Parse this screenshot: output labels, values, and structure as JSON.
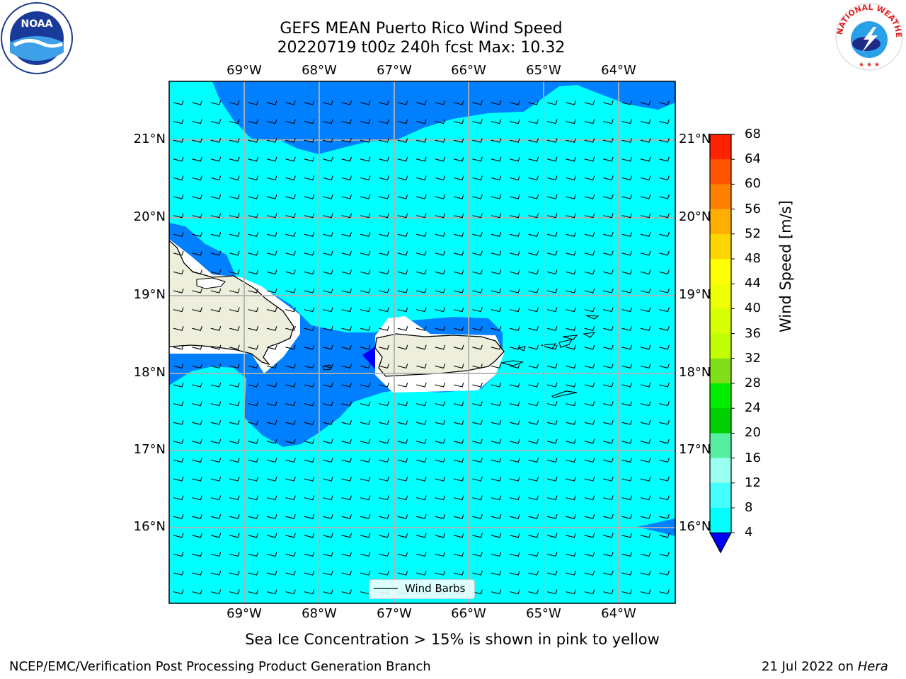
{
  "header": {
    "title_line1": "GEFS MEAN Puerto Rico Wind Speed",
    "title_line2": "20220719 t00z 240h fcst   Max: 10.32"
  },
  "logos": {
    "left": {
      "name": "noaa-logo",
      "text": "NOAA",
      "ring_text": "NATIONAL OCEANIC AND ATMOSPHERIC ADMINISTRATION · U.S. DEPARTMENT OF COMMERCE"
    },
    "right": {
      "name": "nws-logo",
      "ring_text": "NATIONAL WEATHER SERVICE"
    }
  },
  "map": {
    "lon_ticks": [
      "69°W",
      "68°W",
      "67°W",
      "66°W",
      "65°W",
      "64°W"
    ],
    "lat_ticks": [
      "21°N",
      "20°N",
      "19°N",
      "18°N",
      "17°N",
      "16°N"
    ],
    "legend_label": "Wind Barbs",
    "caption": "Sea Ice Concentration > 15% is shown in pink to yellow"
  },
  "colorbar": {
    "label": "Wind Speed [m/s]",
    "ticks": [
      "68",
      "64",
      "60",
      "56",
      "52",
      "48",
      "44",
      "40",
      "36",
      "32",
      "28",
      "24",
      "20",
      "16",
      "12",
      "8",
      "4"
    ],
    "colors": [
      "#ff0000",
      "#ff2200",
      "#ff5500",
      "#ff8000",
      "#ffae00",
      "#ffd700",
      "#ffff00",
      "#eeff00",
      "#d8ff00",
      "#bfff00",
      "#7fe01a",
      "#00ee00",
      "#00d000",
      "#55f0a0",
      "#99ffee",
      "#44ffff",
      "#00ffff",
      "#0080ff"
    ],
    "under_color": "#0000f5"
  },
  "colors": {
    "wind_8_12": "#00ffff",
    "wind_4_8": "#0080ff",
    "wind_under_4": "#0000f5",
    "land": "#eeeedc"
  },
  "footer": {
    "left": "NCEP/EMC/Verification Post Processing Product Generation Branch",
    "right_date": "21 Jul 2022 on ",
    "right_host": "Hera"
  }
}
